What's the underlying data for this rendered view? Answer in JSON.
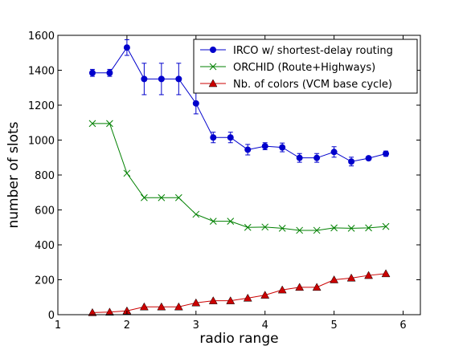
{
  "chart_data": {
    "type": "line",
    "xlabel": "radio range",
    "ylabel": "number of slots",
    "xlim": [
      1,
      6.25
    ],
    "ylim": [
      0,
      1600
    ],
    "xticks": [
      1,
      2,
      3,
      4,
      5,
      6
    ],
    "yticks": [
      0,
      200,
      400,
      600,
      800,
      1000,
      1200,
      1400,
      1600
    ],
    "legend_position": "top-right",
    "grid": false,
    "series": [
      {
        "name": "IRCO w/ shortest-delay routing",
        "color": "#0000cc",
        "marker": "circle",
        "x": [
          1.5,
          1.75,
          2.0,
          2.25,
          2.5,
          2.75,
          3.0,
          3.25,
          3.5,
          3.75,
          4.0,
          4.25,
          4.5,
          4.75,
          5.0,
          5.25,
          5.5,
          5.75
        ],
        "y": [
          1385,
          1385,
          1530,
          1350,
          1350,
          1350,
          1210,
          1015,
          1015,
          945,
          965,
          958,
          898,
          898,
          932,
          877,
          896,
          922
        ],
        "error": [
          20,
          20,
          45,
          90,
          90,
          90,
          60,
          30,
          30,
          30,
          20,
          25,
          25,
          25,
          30,
          25,
          10,
          15
        ]
      },
      {
        "name": "ORCHID (Route+Highways)",
        "color": "#008000",
        "marker": "x",
        "x": [
          1.5,
          1.75,
          2.0,
          2.25,
          2.5,
          2.75,
          3.0,
          3.25,
          3.5,
          3.75,
          4.0,
          4.25,
          4.5,
          4.75,
          5.0,
          5.25,
          5.5,
          5.75
        ],
        "y": [
          1095,
          1095,
          810,
          670,
          670,
          670,
          575,
          535,
          535,
          500,
          502,
          495,
          483,
          483,
          497,
          495,
          497,
          505
        ]
      },
      {
        "name": "Nb. of colors (VCM base cycle)",
        "color": "#cc0000",
        "marker": "triangle",
        "x": [
          1.5,
          1.75,
          2.0,
          2.25,
          2.5,
          2.75,
          3.0,
          3.25,
          3.5,
          3.75,
          4.0,
          4.25,
          4.5,
          4.75,
          5.0,
          5.25,
          5.5,
          5.75
        ],
        "y": [
          12,
          15,
          22,
          45,
          45,
          45,
          68,
          80,
          80,
          95,
          112,
          142,
          157,
          157,
          200,
          210,
          225,
          235
        ]
      }
    ]
  }
}
